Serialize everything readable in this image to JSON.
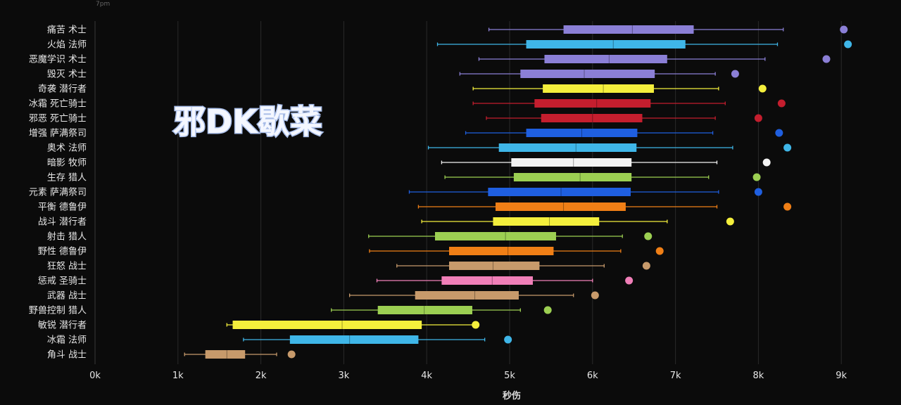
{
  "chart_data": {
    "type": "box",
    "xlabel": "秒伤",
    "xlim": [
      0,
      9500
    ],
    "xticks": [
      0,
      1000,
      2000,
      3000,
      4000,
      5000,
      6000,
      7000,
      8000,
      9000
    ],
    "xtick_labels": [
      "0k",
      "1k",
      "2k",
      "3k",
      "4k",
      "5k",
      "6k",
      "7k",
      "8k",
      "9k"
    ],
    "grid": "vertical",
    "overlay_text": "邪DK歇菜",
    "top_fragment": "7pm",
    "categories": [
      {
        "name": "痛苦 术士",
        "color": "#8b7fd6",
        "min": 4750,
        "q1": 5650,
        "median": 6480,
        "q3": 7220,
        "max": 8300,
        "outlier": 9030
      },
      {
        "name": "火焰 法师",
        "color": "#3fb6e8",
        "min": 4130,
        "q1": 5200,
        "median": 6250,
        "q3": 7120,
        "max": 8230,
        "outlier": 9080
      },
      {
        "name": "恶魔学识 术士",
        "color": "#8b7fd6",
        "min": 4630,
        "q1": 5420,
        "median": 6200,
        "q3": 6900,
        "max": 8080,
        "outlier": 8820
      },
      {
        "name": "毁灭 术士",
        "color": "#8b7fd6",
        "min": 4400,
        "q1": 5130,
        "median": 5900,
        "q3": 6750,
        "max": 7480,
        "outlier": 7720
      },
      {
        "name": "奇袭 潜行者",
        "color": "#f4ef3c",
        "min": 4560,
        "q1": 5400,
        "median": 6130,
        "q3": 6740,
        "max": 7520,
        "outlier": 8050
      },
      {
        "name": "冰霜 死亡骑士",
        "color": "#c41e2e",
        "min": 4560,
        "q1": 5300,
        "median": 6050,
        "q3": 6700,
        "max": 7600,
        "outlier": 8280
      },
      {
        "name": "邪恶 死亡骑士",
        "color": "#c41e2e",
        "min": 4720,
        "q1": 5380,
        "median": 6000,
        "q3": 6600,
        "max": 7480,
        "outlier": 8000
      },
      {
        "name": "增强 萨满祭司",
        "color": "#1f5fe0",
        "min": 4470,
        "q1": 5200,
        "median": 5870,
        "q3": 6540,
        "max": 7450,
        "outlier": 8250
      },
      {
        "name": "奥术 法师",
        "color": "#3fb6e8",
        "min": 4020,
        "q1": 4870,
        "median": 5800,
        "q3": 6530,
        "max": 7690,
        "outlier": 8350
      },
      {
        "name": "暗影 牧师",
        "color": "#f2f2f2",
        "min": 4180,
        "q1": 5020,
        "median": 5770,
        "q3": 6470,
        "max": 7500,
        "outlier": 8100
      },
      {
        "name": "生存 猎人",
        "color": "#9ccf52",
        "min": 4220,
        "q1": 5050,
        "median": 5850,
        "q3": 6470,
        "max": 7400,
        "outlier": 7980
      },
      {
        "name": "元素 萨满祭司",
        "color": "#1f5fe0",
        "min": 3790,
        "q1": 4740,
        "median": 5620,
        "q3": 6460,
        "max": 7520,
        "outlier": 8000
      },
      {
        "name": "平衡 德鲁伊",
        "color": "#f07f16",
        "min": 3900,
        "q1": 4830,
        "median": 5650,
        "q3": 6400,
        "max": 7500,
        "outlier": 8350
      },
      {
        "name": "战斗 潜行者",
        "color": "#f4ef3c",
        "min": 3940,
        "q1": 4800,
        "median": 5480,
        "q3": 6080,
        "max": 6900,
        "outlier": 7660
      },
      {
        "name": "射击 猎人",
        "color": "#9ccf52",
        "min": 3300,
        "q1": 4100,
        "median": 4950,
        "q3": 5560,
        "max": 6360,
        "outlier": 6670
      },
      {
        "name": "野性 德鲁伊",
        "color": "#f07f16",
        "min": 3310,
        "q1": 4270,
        "median": 4980,
        "q3": 5530,
        "max": 6340,
        "outlier": 6810
      },
      {
        "name": "狂怒 战士",
        "color": "#c79a6b",
        "min": 3640,
        "q1": 4270,
        "median": 4800,
        "q3": 5360,
        "max": 6140,
        "outlier": 6650
      },
      {
        "name": "惩戒 圣骑士",
        "color": "#f07fb8",
        "min": 3400,
        "q1": 4180,
        "median": 4790,
        "q3": 5280,
        "max": 6000,
        "outlier": 6440
      },
      {
        "name": "武器 战士",
        "color": "#c79a6b",
        "min": 3070,
        "q1": 3860,
        "median": 4580,
        "q3": 5110,
        "max": 5770,
        "outlier": 6030
      },
      {
        "name": "野兽控制 猎人",
        "color": "#9ccf52",
        "min": 2850,
        "q1": 3410,
        "median": 3970,
        "q3": 4550,
        "max": 5130,
        "outlier": 5460
      },
      {
        "name": "敏锐 潜行者",
        "color": "#f4ef3c",
        "min": 1590,
        "q1": 1660,
        "median": 2980,
        "q3": 3940,
        "max": 4570,
        "outlier": 4590
      },
      {
        "name": "冰霜 法师",
        "color": "#3fb6e8",
        "min": 1790,
        "q1": 2350,
        "median": 3070,
        "q3": 3900,
        "max": 4700,
        "outlier": 4980
      },
      {
        "name": "角斗 战士",
        "color": "#c79a6b",
        "min": 1080,
        "q1": 1330,
        "median": 1590,
        "q3": 1810,
        "max": 2190,
        "outlier": 2370
      }
    ]
  }
}
